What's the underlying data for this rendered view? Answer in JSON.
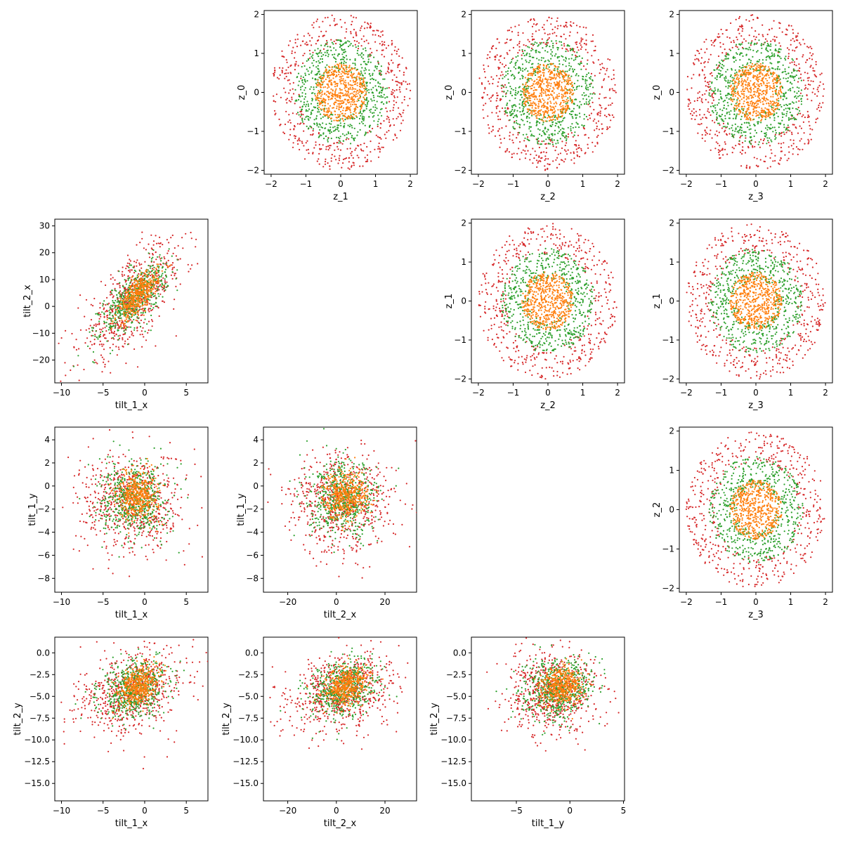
{
  "figure": {
    "type": "scatter-matrix",
    "series_colors": {
      "red": "#d62728",
      "green": "#2ca02c",
      "orange": "#ff7f0e"
    }
  },
  "chart_data": [
    {
      "id": "z0_vs_z1",
      "type": "scatter",
      "xlabel": "z_1",
      "ylabel": "z_0",
      "xlim": [
        -2.2,
        2.2
      ],
      "ylim": [
        -2.1,
        2.1
      ],
      "xticks": [
        -2,
        -1,
        0,
        1,
        2
      ],
      "yticks": [
        -2,
        -1,
        0,
        1,
        2
      ],
      "series": [
        {
          "color": "#d62728",
          "shape": "ring",
          "inner": 1.2,
          "outer": 2.0,
          "cx": 0,
          "cy": 0,
          "n": 500
        },
        {
          "color": "#2ca02c",
          "shape": "ring",
          "inner": 0.55,
          "outer": 1.35,
          "cx": 0,
          "cy": 0,
          "n": 600
        },
        {
          "color": "#ff7f0e",
          "shape": "disk",
          "r": 0.75,
          "cx": 0,
          "cy": 0,
          "n": 550
        }
      ]
    },
    {
      "id": "z0_vs_z2",
      "type": "scatter",
      "xlabel": "z_2",
      "ylabel": "z_0",
      "xlim": [
        -2.2,
        2.2
      ],
      "ylim": [
        -2.1,
        2.1
      ],
      "xticks": [
        -2,
        -1,
        0,
        1,
        2
      ],
      "yticks": [
        -2,
        -1,
        0,
        1,
        2
      ],
      "series": [
        {
          "color": "#d62728",
          "shape": "ring",
          "inner": 1.2,
          "outer": 2.0,
          "cx": 0,
          "cy": 0,
          "n": 500
        },
        {
          "color": "#2ca02c",
          "shape": "ring",
          "inner": 0.55,
          "outer": 1.35,
          "cx": 0,
          "cy": 0,
          "n": 600
        },
        {
          "color": "#ff7f0e",
          "shape": "disk",
          "r": 0.75,
          "cx": 0,
          "cy": 0,
          "n": 550
        }
      ]
    },
    {
      "id": "z0_vs_z3",
      "type": "scatter",
      "xlabel": "z_3",
      "ylabel": "z_0",
      "xlim": [
        -2.2,
        2.2
      ],
      "ylim": [
        -2.1,
        2.1
      ],
      "xticks": [
        -2,
        -1,
        0,
        1,
        2
      ],
      "yticks": [
        -2,
        -1,
        0,
        1,
        2
      ],
      "series": [
        {
          "color": "#d62728",
          "shape": "ring",
          "inner": 1.2,
          "outer": 2.0,
          "cx": 0,
          "cy": 0,
          "n": 500
        },
        {
          "color": "#2ca02c",
          "shape": "ring",
          "inner": 0.55,
          "outer": 1.35,
          "cx": 0,
          "cy": 0,
          "n": 600
        },
        {
          "color": "#ff7f0e",
          "shape": "disk",
          "r": 0.75,
          "cx": 0,
          "cy": 0,
          "n": 550
        }
      ]
    },
    {
      "id": "tilt2x_vs_tilt1x",
      "type": "scatter",
      "xlabel": "tilt_1_x",
      "ylabel": "tilt_2_x",
      "xlim": [
        -10.8,
        7.6
      ],
      "ylim": [
        -28.5,
        32.5
      ],
      "xticks": [
        -10,
        -5,
        0,
        5
      ],
      "yticks": [
        -20,
        -10,
        0,
        10,
        20,
        30
      ],
      "series": [
        {
          "color": "#d62728",
          "shape": "gauss",
          "mx": -1.5,
          "my": 2,
          "sx": 3.2,
          "sy": 11,
          "rho": 0.72,
          "n": 650
        },
        {
          "color": "#2ca02c",
          "shape": "gauss",
          "mx": -1.3,
          "my": 3,
          "sx": 2.0,
          "sy": 7,
          "rho": 0.72,
          "n": 550
        },
        {
          "color": "#ff7f0e",
          "shape": "gauss",
          "mx": -0.8,
          "my": 4,
          "sx": 1.2,
          "sy": 4.5,
          "rho": 0.7,
          "n": 450
        }
      ]
    },
    {
      "id": "z1_vs_z2",
      "type": "scatter",
      "xlabel": "z_2",
      "ylabel": "z_1",
      "xlim": [
        -2.2,
        2.2
      ],
      "ylim": [
        -2.1,
        2.1
      ],
      "xticks": [
        -2,
        -1,
        0,
        1,
        2
      ],
      "yticks": [
        -2,
        -1,
        0,
        1,
        2
      ],
      "series": [
        {
          "color": "#d62728",
          "shape": "ring",
          "inner": 1.2,
          "outer": 2.0,
          "cx": 0,
          "cy": 0,
          "n": 500
        },
        {
          "color": "#2ca02c",
          "shape": "ring",
          "inner": 0.55,
          "outer": 1.35,
          "cx": 0,
          "cy": 0,
          "n": 600
        },
        {
          "color": "#ff7f0e",
          "shape": "disk",
          "r": 0.75,
          "cx": 0,
          "cy": 0,
          "n": 550
        }
      ]
    },
    {
      "id": "z1_vs_z3",
      "type": "scatter",
      "xlabel": "z_3",
      "ylabel": "z_1",
      "xlim": [
        -2.2,
        2.2
      ],
      "ylim": [
        -2.1,
        2.1
      ],
      "xticks": [
        -2,
        -1,
        0,
        1,
        2
      ],
      "yticks": [
        -2,
        -1,
        0,
        1,
        2
      ],
      "series": [
        {
          "color": "#d62728",
          "shape": "ring",
          "inner": 1.2,
          "outer": 2.0,
          "cx": 0,
          "cy": 0,
          "n": 500
        },
        {
          "color": "#2ca02c",
          "shape": "ring",
          "inner": 0.55,
          "outer": 1.35,
          "cx": 0,
          "cy": 0,
          "n": 600
        },
        {
          "color": "#ff7f0e",
          "shape": "disk",
          "r": 0.75,
          "cx": 0,
          "cy": 0,
          "n": 550
        }
      ]
    },
    {
      "id": "tilt1y_vs_tilt1x",
      "type": "scatter",
      "xlabel": "tilt_1_x",
      "ylabel": "tilt_1_y",
      "xlim": [
        -10.8,
        7.6
      ],
      "ylim": [
        -9.2,
        5.1
      ],
      "xticks": [
        -10,
        -5,
        0,
        5
      ],
      "yticks": [
        -8,
        -6,
        -4,
        -2,
        0,
        2,
        4
      ],
      "series": [
        {
          "color": "#d62728",
          "shape": "gauss",
          "mx": -1.5,
          "my": -1.5,
          "sx": 3.2,
          "sy": 2.2,
          "rho": 0,
          "n": 650
        },
        {
          "color": "#2ca02c",
          "shape": "gauss",
          "mx": -1.3,
          "my": -1.2,
          "sx": 2.0,
          "sy": 1.6,
          "rho": 0,
          "n": 550
        },
        {
          "color": "#ff7f0e",
          "shape": "gauss",
          "mx": -0.8,
          "my": -0.8,
          "sx": 1.2,
          "sy": 1.0,
          "rho": 0,
          "n": 450
        }
      ]
    },
    {
      "id": "tilt1y_vs_tilt2x",
      "type": "scatter",
      "xlabel": "tilt_2_x",
      "ylabel": "tilt_1_y",
      "xlim": [
        -30,
        33
      ],
      "ylim": [
        -9.2,
        5.1
      ],
      "xticks": [
        -20,
        0,
        20
      ],
      "yticks": [
        -8,
        -6,
        -4,
        -2,
        0,
        2,
        4
      ],
      "series": [
        {
          "color": "#d62728",
          "shape": "gauss",
          "mx": 2,
          "my": -1.5,
          "sx": 11,
          "sy": 2.2,
          "rho": 0,
          "n": 650
        },
        {
          "color": "#2ca02c",
          "shape": "gauss",
          "mx": 3,
          "my": -1.2,
          "sx": 7,
          "sy": 1.6,
          "rho": 0,
          "n": 550
        },
        {
          "color": "#ff7f0e",
          "shape": "gauss",
          "mx": 4,
          "my": -0.8,
          "sx": 4.5,
          "sy": 1.0,
          "rho": 0,
          "n": 450
        }
      ]
    },
    {
      "id": "z2_vs_z3",
      "type": "scatter",
      "xlabel": "z_3",
      "ylabel": "z_2",
      "xlim": [
        -2.2,
        2.2
      ],
      "ylim": [
        -2.1,
        2.1
      ],
      "xticks": [
        -2,
        -1,
        0,
        1,
        2
      ],
      "yticks": [
        -2,
        -1,
        0,
        1,
        2
      ],
      "series": [
        {
          "color": "#d62728",
          "shape": "ring",
          "inner": 1.2,
          "outer": 2.0,
          "cx": 0,
          "cy": 0,
          "n": 500
        },
        {
          "color": "#2ca02c",
          "shape": "ring",
          "inner": 0.55,
          "outer": 1.35,
          "cx": 0,
          "cy": 0,
          "n": 600
        },
        {
          "color": "#ff7f0e",
          "shape": "disk",
          "r": 0.75,
          "cx": 0,
          "cy": 0,
          "n": 550
        }
      ]
    },
    {
      "id": "tilt2y_vs_tilt1x",
      "type": "scatter",
      "xlabel": "tilt_1_x",
      "ylabel": "tilt_2_y",
      "xlim": [
        -10.8,
        7.6
      ],
      "ylim": [
        -17,
        1.8
      ],
      "xticks": [
        -10,
        -5,
        0,
        5
      ],
      "yticks": [
        0.0,
        -2.5,
        -5.0,
        -7.5,
        -10.0,
        -12.5,
        -15.0
      ],
      "series": [
        {
          "color": "#d62728",
          "shape": "gauss",
          "mx": -1.5,
          "my": -4.5,
          "sx": 3.2,
          "sy": 2.4,
          "rho": 0.3,
          "n": 650
        },
        {
          "color": "#2ca02c",
          "shape": "gauss",
          "mx": -1.3,
          "my": -4.2,
          "sx": 2.0,
          "sy": 1.7,
          "rho": 0.3,
          "n": 550
        },
        {
          "color": "#ff7f0e",
          "shape": "gauss",
          "mx": -0.8,
          "my": -3.8,
          "sx": 1.2,
          "sy": 1.1,
          "rho": 0.3,
          "n": 450
        }
      ]
    },
    {
      "id": "tilt2y_vs_tilt2x",
      "type": "scatter",
      "xlabel": "tilt_2_x",
      "ylabel": "tilt_2_y",
      "xlim": [
        -30,
        33
      ],
      "ylim": [
        -17,
        1.8
      ],
      "xticks": [
        -20,
        0,
        20
      ],
      "yticks": [
        0.0,
        -2.5,
        -5.0,
        -7.5,
        -10.0,
        -12.5,
        -15.0
      ],
      "series": [
        {
          "color": "#d62728",
          "shape": "gauss",
          "mx": 2,
          "my": -4.5,
          "sx": 11,
          "sy": 2.4,
          "rho": 0.3,
          "n": 650
        },
        {
          "color": "#2ca02c",
          "shape": "gauss",
          "mx": 3,
          "my": -4.2,
          "sx": 7,
          "sy": 1.7,
          "rho": 0.3,
          "n": 550
        },
        {
          "color": "#ff7f0e",
          "shape": "gauss",
          "mx": 4,
          "my": -3.8,
          "sx": 4.5,
          "sy": 1.1,
          "rho": 0.3,
          "n": 450
        }
      ]
    },
    {
      "id": "tilt2y_vs_tilt1y",
      "type": "scatter",
      "xlabel": "tilt_1_y",
      "ylabel": "tilt_2_y",
      "xlim": [
        -9.2,
        5.1
      ],
      "ylim": [
        -17,
        1.8
      ],
      "xticks": [
        -5,
        0,
        5
      ],
      "yticks": [
        0.0,
        -2.5,
        -5.0,
        -7.5,
        -10.0,
        -12.5,
        -15.0
      ],
      "series": [
        {
          "color": "#d62728",
          "shape": "gauss",
          "mx": -1.5,
          "my": -4.5,
          "sx": 2.2,
          "sy": 2.4,
          "rho": 0.15,
          "n": 650
        },
        {
          "color": "#2ca02c",
          "shape": "gauss",
          "mx": -1.2,
          "my": -4.2,
          "sx": 1.6,
          "sy": 1.7,
          "rho": 0.15,
          "n": 550
        },
        {
          "color": "#ff7f0e",
          "shape": "gauss",
          "mx": -0.8,
          "my": -3.8,
          "sx": 1.0,
          "sy": 1.1,
          "rho": 0.15,
          "n": 450
        }
      ]
    }
  ]
}
